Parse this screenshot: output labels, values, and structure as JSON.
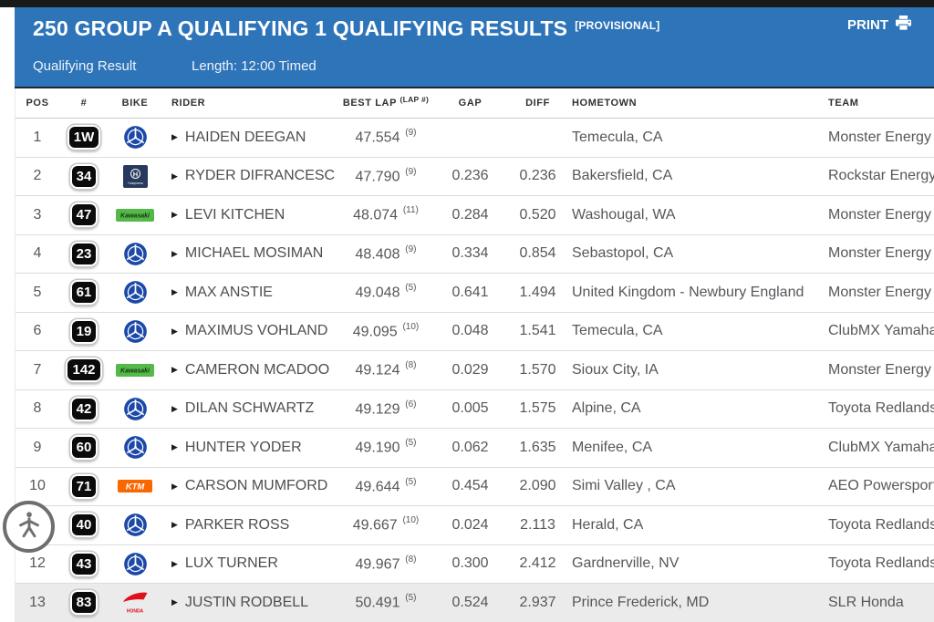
{
  "banner": {
    "title": "250 GROUP A QUALIFYING 1 QUALIFYING RESULTS",
    "provisional_tag": "[PROVISIONAL]",
    "print_label": "PRINT",
    "subtitle_left": "Qualifying Result",
    "subtitle_right": "Length: 12:00 Timed"
  },
  "colors": {
    "banner_blue": "#2e74b9",
    "top_bar": "#191919",
    "highlight_row": "#ebebeb",
    "yamaha_blue": "#1c49a8",
    "husqvarna_navy": "#27395c",
    "kawasaki_green": "#55b94a",
    "ktm_orange": "#f96800",
    "honda_red": "#e0101a"
  },
  "table": {
    "columns": {
      "pos": "POS",
      "num": "#",
      "bike": "BIKE",
      "rider": "RIDER",
      "best_lap": "BEST LAP",
      "lap_sup": "(LAP #)",
      "gap": "GAP",
      "diff": "DIFF",
      "hometown": "HOMETOWN",
      "team": "TEAM"
    },
    "rows": [
      {
        "pos": "1",
        "num": "1W",
        "bike": "yamaha",
        "rider": "HAIDEN DEEGAN",
        "best_lap": "47.554",
        "lap_no": "(9)",
        "gap": "",
        "diff": "",
        "hometown": "Temecula, CA",
        "team": "Monster Energy S",
        "highlight": false
      },
      {
        "pos": "2",
        "num": "34",
        "bike": "husqvarna",
        "rider": "RYDER DIFRANCESCO",
        "best_lap": "47.790",
        "lap_no": "(9)",
        "gap": "0.236",
        "diff": "0.236",
        "hometown": "Bakersfield, CA",
        "team": "Rockstar Energy",
        "highlight": false
      },
      {
        "pos": "3",
        "num": "47",
        "bike": "kawasaki",
        "rider": "LEVI KITCHEN",
        "best_lap": "48.074",
        "lap_no": "(11)",
        "gap": "0.284",
        "diff": "0.520",
        "hometown": "Washougal, WA",
        "team": "Monster Energy",
        "highlight": false
      },
      {
        "pos": "4",
        "num": "23",
        "bike": "yamaha",
        "rider": "MICHAEL MOSIMAN",
        "best_lap": "48.408",
        "lap_no": "(9)",
        "gap": "0.334",
        "diff": "0.854",
        "hometown": "Sebastopol, CA",
        "team": "Monster Energy S",
        "highlight": false
      },
      {
        "pos": "5",
        "num": "61",
        "bike": "yamaha",
        "rider": "MAX ANSTIE",
        "best_lap": "49.048",
        "lap_no": "(5)",
        "gap": "0.641",
        "diff": "1.494",
        "hometown": "United Kingdom - Newbury England",
        "team": "Monster Energy S",
        "highlight": false
      },
      {
        "pos": "6",
        "num": "19",
        "bike": "yamaha",
        "rider": "MAXIMUS VOHLAND",
        "best_lap": "49.095",
        "lap_no": "(10)",
        "gap": "0.048",
        "diff": "1.541",
        "hometown": "Temecula, CA",
        "team": "ClubMX Yamaha",
        "highlight": false
      },
      {
        "pos": "7",
        "num": "142",
        "bike": "kawasaki",
        "rider": "CAMERON MCADOO",
        "best_lap": "49.124",
        "lap_no": "(8)",
        "gap": "0.029",
        "diff": "1.570",
        "hometown": "Sioux City, IA",
        "team": "Monster Energy",
        "highlight": false
      },
      {
        "pos": "8",
        "num": "42",
        "bike": "yamaha",
        "rider": "DILAN SCHWARTZ",
        "best_lap": "49.129",
        "lap_no": "(6)",
        "gap": "0.005",
        "diff": "1.575",
        "hometown": "Alpine, CA",
        "team": "Toyota Redlands",
        "highlight": false
      },
      {
        "pos": "9",
        "num": "60",
        "bike": "yamaha",
        "rider": "HUNTER YODER",
        "best_lap": "49.190",
        "lap_no": "(5)",
        "gap": "0.062",
        "diff": "1.635",
        "hometown": "Menifee, CA",
        "team": "ClubMX Yamaha",
        "highlight": false
      },
      {
        "pos": "10",
        "num": "71",
        "bike": "ktm",
        "rider": "CARSON MUMFORD",
        "best_lap": "49.644",
        "lap_no": "(5)",
        "gap": "0.454",
        "diff": "2.090",
        "hometown": "Simi Valley , CA",
        "team": "AEO Powersports",
        "highlight": false
      },
      {
        "pos": "11",
        "num": "40",
        "bike": "yamaha",
        "rider": "PARKER ROSS",
        "best_lap": "49.667",
        "lap_no": "(10)",
        "gap": "0.024",
        "diff": "2.113",
        "hometown": "Herald, CA",
        "team": "Toyota Redlands",
        "highlight": false
      },
      {
        "pos": "12",
        "num": "43",
        "bike": "yamaha",
        "rider": "LUX TURNER",
        "best_lap": "49.967",
        "lap_no": "(8)",
        "gap": "0.300",
        "diff": "2.412",
        "hometown": "Gardnerville, NV",
        "team": "Toyota Redlands",
        "highlight": false
      },
      {
        "pos": "13",
        "num": "83",
        "bike": "honda",
        "rider": "JUSTIN RODBELL",
        "best_lap": "50.491",
        "lap_no": "(5)",
        "gap": "0.524",
        "diff": "2.937",
        "hometown": "Prince Frederick, MD",
        "team": "SLR Honda",
        "highlight": true
      }
    ]
  }
}
